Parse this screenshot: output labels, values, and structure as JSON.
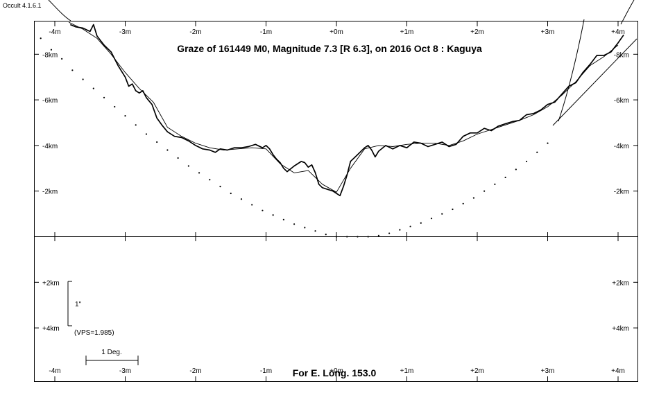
{
  "window": {
    "version_label": "Occult 4.1.6.1"
  },
  "chart_data": {
    "type": "line",
    "title": "Graze of  161449 M0,  Magnitude 7.3 [R 6.3],  on 2016 Oct  8  :  Kaguya",
    "footer": "For E. Long. 153.0",
    "x_unit": "m",
    "y_unit": "km",
    "xlim": [
      -4.3,
      4.3
    ],
    "ylim": [
      -10.3,
      6.1
    ],
    "x_ticks": [
      -4,
      -3,
      -2,
      -1,
      0,
      1,
      2,
      3,
      4
    ],
    "x_tick_labels": [
      "-4m",
      "-3m",
      "-2m",
      "-1m",
      "+0m",
      "+1m",
      "+2m",
      "+3m",
      "+4m"
    ],
    "y_ticks_upper": [
      -8,
      -6,
      -4,
      -2
    ],
    "y_tick_labels_upper": [
      "-8km",
      "-6km",
      "-4km",
      "-2km"
    ],
    "y_ticks_lower": [
      2,
      4
    ],
    "y_tick_labels_lower": [
      "+2km",
      "+4km"
    ],
    "scale_bar": {
      "vertical_label": "1\"",
      "vps_label": "(VPS=1.985)",
      "horizontal_label": "1 Deg."
    },
    "series": [
      {
        "role": "limb-profile-detailed",
        "x": [
          -3.78,
          -3.7,
          -3.6,
          -3.5,
          -3.45,
          -3.4,
          -3.35,
          -3.3,
          -3.2,
          -3.1,
          -3.0,
          -2.95,
          -2.9,
          -2.85,
          -2.8,
          -2.75,
          -2.7,
          -2.62,
          -2.55,
          -2.48,
          -2.4,
          -2.3,
          -2.2,
          -2.1,
          -2.0,
          -1.9,
          -1.8,
          -1.72,
          -1.65,
          -1.55,
          -1.45,
          -1.35,
          -1.25,
          -1.15,
          -1.05,
          -1.0,
          -0.95,
          -0.9,
          -0.85,
          -0.8,
          -0.75,
          -0.7,
          -0.6,
          -0.5,
          -0.45,
          -0.4,
          -0.35,
          -0.3,
          -0.25,
          -0.2,
          -0.15,
          -0.1,
          -0.05,
          0.0,
          0.05,
          0.1,
          0.15,
          0.2,
          0.3,
          0.4,
          0.45,
          0.5,
          0.55,
          0.6,
          0.7,
          0.8,
          0.9,
          1.0,
          1.1,
          1.2,
          1.3,
          1.4,
          1.5,
          1.6,
          1.7,
          1.8,
          1.9,
          2.0,
          2.1,
          2.2,
          2.3,
          2.4,
          2.5,
          2.6,
          2.7,
          2.8,
          2.9,
          3.0,
          3.1,
          3.2,
          3.3,
          3.4,
          3.5,
          3.6,
          3.7,
          3.8,
          3.9,
          4.0,
          4.08
        ],
        "y": [
          -9.3,
          -9.2,
          -9.15,
          -9.0,
          -9.3,
          -8.8,
          -8.6,
          -8.4,
          -8.1,
          -7.5,
          -7.0,
          -6.6,
          -6.7,
          -6.4,
          -6.3,
          -6.4,
          -6.1,
          -5.8,
          -5.2,
          -4.9,
          -4.6,
          -4.4,
          -4.35,
          -4.2,
          -4.0,
          -3.85,
          -3.8,
          -3.7,
          -3.85,
          -3.8,
          -3.9,
          -3.9,
          -3.95,
          -4.05,
          -3.9,
          -4.0,
          -3.85,
          -3.6,
          -3.4,
          -3.25,
          -3.0,
          -2.85,
          -3.1,
          -3.3,
          -3.25,
          -3.05,
          -3.15,
          -2.8,
          -2.3,
          -2.15,
          -2.1,
          -2.05,
          -2.0,
          -1.9,
          -1.8,
          -2.2,
          -2.7,
          -3.3,
          -3.6,
          -3.9,
          -4.0,
          -3.8,
          -3.5,
          -3.75,
          -4.0,
          -3.85,
          -4.0,
          -3.9,
          -4.15,
          -4.1,
          -3.95,
          -4.05,
          -4.15,
          -3.95,
          -4.05,
          -4.4,
          -4.55,
          -4.55,
          -4.75,
          -4.65,
          -4.85,
          -4.95,
          -5.05,
          -5.1,
          -5.35,
          -5.4,
          -5.55,
          -5.8,
          -5.9,
          -6.25,
          -6.6,
          -6.75,
          -7.2,
          -7.55,
          -7.95,
          -7.95,
          -8.1,
          -8.5,
          -8.85
        ]
      },
      {
        "role": "limb-profile-smooth",
        "x": [
          -3.8,
          -3.6,
          -3.4,
          -3.2,
          -3.0,
          -2.8,
          -2.6,
          -2.4,
          -2.2,
          -2.0,
          -1.8,
          -1.6,
          -1.4,
          -1.2,
          -1.0,
          -0.8,
          -0.6,
          -0.4,
          -0.2,
          0.0,
          0.2,
          0.4,
          0.6,
          0.8,
          1.0,
          1.2,
          1.4,
          1.6,
          1.8,
          2.0,
          2.2,
          2.4,
          2.6,
          2.8,
          3.0,
          3.2,
          3.4,
          3.6,
          3.8,
          4.0
        ],
        "y": [
          -9.4,
          -9.1,
          -8.7,
          -8.0,
          -7.2,
          -6.5,
          -5.9,
          -4.8,
          -4.4,
          -4.1,
          -3.9,
          -3.8,
          -3.85,
          -3.9,
          -3.85,
          -3.2,
          -2.8,
          -2.9,
          -2.3,
          -1.95,
          -3.0,
          -3.85,
          -4.0,
          -3.95,
          -4.05,
          -4.1,
          -4.1,
          -4.0,
          -4.2,
          -4.5,
          -4.7,
          -4.9,
          -5.1,
          -5.35,
          -5.7,
          -6.2,
          -6.8,
          -7.5,
          -7.9,
          -8.4
        ]
      },
      {
        "role": "lunar-limb-dots",
        "x": [
          -4.2,
          -4.05,
          -3.9,
          -3.75,
          -3.6,
          -3.45,
          -3.3,
          -3.15,
          -3.0,
          -2.85,
          -2.7,
          -2.55,
          -2.4,
          -2.25,
          -2.1,
          -1.95,
          -1.8,
          -1.65,
          -1.5,
          -1.35,
          -1.2,
          -1.05,
          -0.9,
          -0.75,
          -0.6,
          -0.45,
          -0.3,
          -0.15,
          0.0,
          0.15,
          0.3,
          0.45,
          0.6,
          0.75,
          0.9,
          1.05,
          1.2,
          1.35,
          1.5,
          1.65,
          1.8,
          1.95,
          2.1,
          2.25,
          2.4,
          2.55,
          2.7,
          2.85,
          3.0
        ],
        "y": [
          -8.7,
          -8.2,
          -7.8,
          -7.3,
          -6.9,
          -6.5,
          -6.1,
          -5.7,
          -5.3,
          -4.9,
          -4.5,
          -4.15,
          -3.8,
          -3.45,
          -3.1,
          -2.8,
          -2.5,
          -2.2,
          -1.9,
          -1.65,
          -1.4,
          -1.15,
          -0.95,
          -0.75,
          -0.55,
          -0.4,
          -0.25,
          -0.1,
          0.0,
          0.0,
          0.0,
          0.0,
          -0.05,
          -0.15,
          -0.3,
          -0.45,
          -0.6,
          -0.8,
          -1.0,
          -1.2,
          -1.45,
          -1.7,
          -2.0,
          -2.3,
          -2.6,
          -2.95,
          -3.3,
          -3.7,
          -4.1
        ]
      }
    ],
    "grid": false,
    "legend": "none"
  }
}
